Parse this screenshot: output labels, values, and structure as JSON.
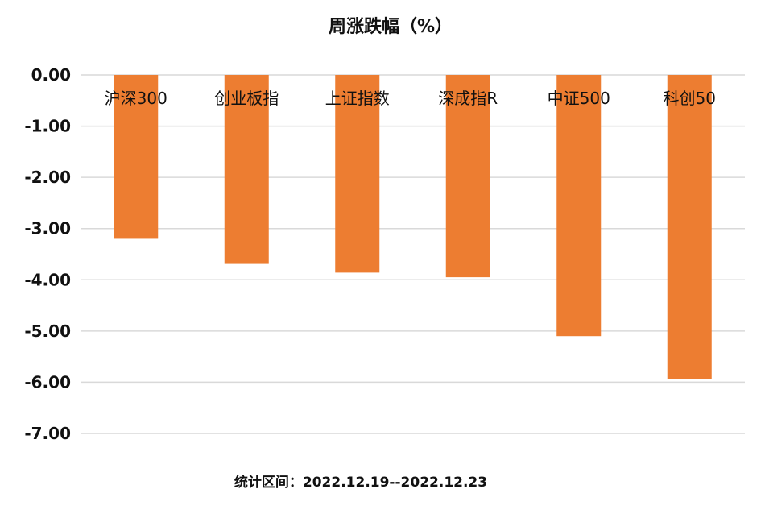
{
  "chart_data": {
    "type": "bar",
    "title": "周涨跌幅（%）",
    "categories": [
      "沪深300",
      "创业板指",
      "上证指数",
      "深成指R",
      "中证500",
      "科创50"
    ],
    "values": [
      -3.2,
      -3.69,
      -3.86,
      -3.95,
      -5.1,
      -5.94
    ],
    "ylim": [
      -7.0,
      0.0
    ],
    "yticks": [
      "0.00",
      "-1.00",
      "-2.00",
      "-3.00",
      "-4.00",
      "-5.00",
      "-6.00",
      "-7.00"
    ],
    "xlabel": "",
    "ylabel": "",
    "grid": true,
    "legend": "none",
    "bar_color": "#ED7D31",
    "footnote": "统计区间：2022.12.19--2022.12.23"
  }
}
